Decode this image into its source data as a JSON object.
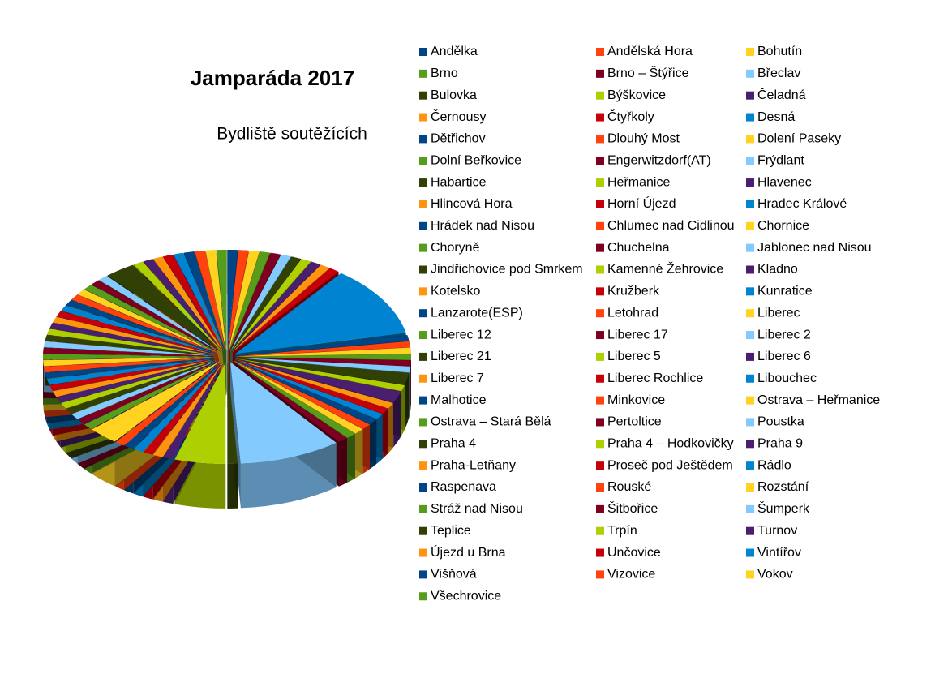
{
  "chart_data": {
    "type": "pie",
    "title": "Jamparáda 2017",
    "subtitle": "Bydliště soutěžících",
    "categories": [
      "Andělka",
      "Andělská Hora",
      "Bohutín",
      "Brno",
      "Brno – Štýřice",
      "Břeclav",
      "Bulovka",
      "Býškovice",
      "Čeladná",
      "Černousy",
      "Čtyřkoly",
      "Desná",
      "Dětřichov",
      "Dlouhý Most",
      "Dolení Paseky",
      "Dolní Beřkovice",
      "Engerwitzdorf(AT)",
      "Frýdlant",
      "Habartice",
      "Heřmanice",
      "Hlavenec",
      "Hlincová Hora",
      "Horní Újezd",
      "Hradec Králové",
      "Hrádek nad Nisou",
      "Chlumec nad Cidlinou",
      "Chornice",
      "Choryně",
      "Chuchelna",
      "Jablonec nad Nisou",
      "Jindřichovice pod Smrkem",
      "Kamenné Žehrovice",
      "Kladno",
      "Kotelsko",
      "Kružberk",
      "Kunratice",
      "Lanzarote(ESP)",
      "Letohrad",
      "Liberec",
      "Liberec 12",
      "Liberec 17",
      "Liberec 2",
      "Liberec 21",
      "Liberec 5",
      "Liberec 6",
      "Liberec 7",
      "Liberec Rochlice",
      "Libouchec",
      "Malhotice",
      "Minkovice",
      "Ostrava – Heřmanice",
      "Ostrava – Stará Bělá",
      "Pertoltice",
      "Poustka",
      "Praha 4",
      "Praha 4 – Hodkovičky",
      "Praha 9",
      "Praha-Letňany",
      "Proseč pod Ještědem",
      "Rádlo",
      "Raspenava",
      "Rouské",
      "Rozstání",
      "Stráž nad Nisou",
      "Šitbořice",
      "Šumperk",
      "Teplice",
      "Trpín",
      "Turnov",
      "Újezd u Brna",
      "Unčovice",
      "Vintířov",
      "Višňová",
      "Vizovice",
      "Vokov",
      "Všechrovice"
    ],
    "values": [
      1,
      1,
      1,
      1,
      1,
      1,
      1,
      1,
      1,
      1,
      1,
      12,
      1,
      1,
      1,
      1,
      1,
      1,
      2,
      1,
      2,
      1,
      1,
      1,
      1,
      1,
      1,
      1,
      1,
      10,
      1,
      5,
      1,
      1,
      1,
      1,
      1,
      1,
      3,
      1,
      1,
      1,
      1,
      1,
      1,
      1,
      1,
      1,
      1,
      1,
      1,
      1,
      1,
      1,
      1,
      1,
      1,
      1,
      1,
      1,
      1,
      1,
      1,
      1,
      1,
      1,
      3,
      1,
      1,
      1,
      1,
      1,
      1,
      1,
      1,
      1
    ],
    "colors": [
      "#004586",
      "#ff420e",
      "#ffd320",
      "#579d1c",
      "#7e0021",
      "#83caff",
      "#314004",
      "#aecf00",
      "#4b1f6f",
      "#ff950e",
      "#c5000b",
      "#0084d1"
    ]
  }
}
